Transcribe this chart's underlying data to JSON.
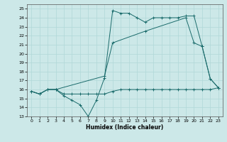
{
  "xlabel": "Humidex (Indice chaleur)",
  "bg_color": "#cce8e8",
  "grid_color": "#b0d8d8",
  "line_color": "#1a6b6b",
  "xlim": [
    -0.5,
    23.5
  ],
  "ylim": [
    13,
    25.5
  ],
  "yticks": [
    13,
    14,
    15,
    16,
    17,
    18,
    19,
    20,
    21,
    22,
    23,
    24,
    25
  ],
  "xticks": [
    0,
    1,
    2,
    3,
    4,
    5,
    6,
    7,
    8,
    9,
    10,
    11,
    12,
    13,
    14,
    15,
    16,
    17,
    18,
    19,
    20,
    21,
    22,
    23
  ],
  "line1_x": [
    0,
    1,
    2,
    3,
    4,
    5,
    6,
    7,
    8,
    9,
    10,
    11,
    12,
    13,
    14,
    15,
    16,
    17,
    18,
    19,
    20,
    21,
    22,
    23
  ],
  "line1_y": [
    15.8,
    15.5,
    16.0,
    16.0,
    15.3,
    14.8,
    14.3,
    13.0,
    14.8,
    17.3,
    24.8,
    24.5,
    24.5,
    24.0,
    23.5,
    24.0,
    24.0,
    24.0,
    24.0,
    24.2,
    24.2,
    20.8,
    17.2,
    16.2
  ],
  "line2_x": [
    0,
    1,
    2,
    3,
    4,
    5,
    6,
    7,
    8,
    9,
    10,
    11,
    12,
    13,
    14,
    15,
    16,
    17,
    18,
    19,
    20,
    21,
    22,
    23
  ],
  "line2_y": [
    15.8,
    15.5,
    16.0,
    16.0,
    15.5,
    15.5,
    15.5,
    15.5,
    15.5,
    15.5,
    15.8,
    16.0,
    16.0,
    16.0,
    16.0,
    16.0,
    16.0,
    16.0,
    16.0,
    16.0,
    16.0,
    16.0,
    16.0,
    16.2
  ],
  "line3_x": [
    0,
    1,
    2,
    3,
    9,
    10,
    14,
    19,
    20,
    21,
    22,
    23
  ],
  "line3_y": [
    15.8,
    15.5,
    16.0,
    16.0,
    17.5,
    21.2,
    22.5,
    24.0,
    21.2,
    20.8,
    17.2,
    16.2
  ]
}
